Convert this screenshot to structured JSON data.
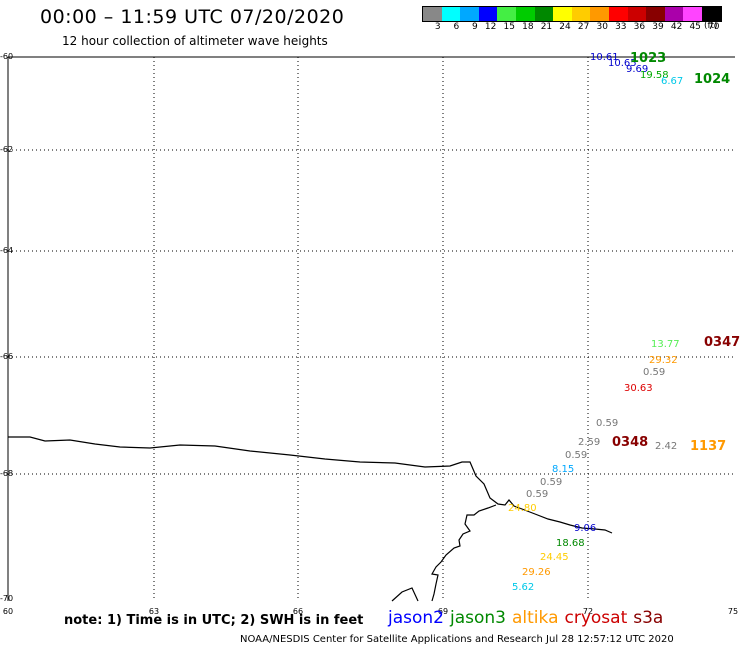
{
  "header": {
    "title": "00:00 – 11:59 UTC 07/20/2020",
    "subtitle": "12 hour collection of altimeter wave heights"
  },
  "scale": {
    "unit": "(ft)",
    "bins": [
      {
        "label": "3",
        "color": "#888888"
      },
      {
        "label": "6",
        "color": "#00ffff"
      },
      {
        "label": "9",
        "color": "#00a8ff"
      },
      {
        "label": "12",
        "color": "#0000ff"
      },
      {
        "label": "15",
        "color": "#44ee44"
      },
      {
        "label": "18",
        "color": "#00cc00"
      },
      {
        "label": "21",
        "color": "#008800"
      },
      {
        "label": "24",
        "color": "#ffff00"
      },
      {
        "label": "27",
        "color": "#ffcc00"
      },
      {
        "label": "30",
        "color": "#ff9900"
      },
      {
        "label": "33",
        "color": "#ff0000"
      },
      {
        "label": "36",
        "color": "#cc0000"
      },
      {
        "label": "39",
        "color": "#880000"
      },
      {
        "label": "42",
        "color": "#aa00aa"
      },
      {
        "label": "45",
        "color": "#ff44ff"
      },
      {
        "label": "70",
        "color": "#000000"
      }
    ]
  },
  "axes": {
    "lat_labels": [
      "-60",
      "-62",
      "-64",
      "-66",
      "-68",
      "-70"
    ],
    "lon_labels": [
      "60",
      "63",
      "66",
      "69",
      "72",
      "75"
    ]
  },
  "observations": [
    {
      "text": "10.61",
      "color": "#0000cc"
    },
    {
      "text": "10.65",
      "color": "#0000cc"
    },
    {
      "text": "9.69",
      "color": "#0000cc"
    },
    {
      "text": "19.58",
      "color": "#00aa00"
    },
    {
      "text": "6.67",
      "color": "#00c8e8"
    },
    {
      "text": "13.77",
      "color": "#55ee55"
    },
    {
      "text": "29.32",
      "color": "#ff9900"
    },
    {
      "text": "0.59",
      "color": "#777777"
    },
    {
      "text": "30.63",
      "color": "#dd0000"
    },
    {
      "text": "0.59",
      "color": "#777777"
    },
    {
      "text": "2.59",
      "color": "#777777"
    },
    {
      "text": "0.59",
      "color": "#777777"
    },
    {
      "text": "8.15",
      "color": "#00a8ff"
    },
    {
      "text": "0.59",
      "color": "#777777"
    },
    {
      "text": "0.59",
      "color": "#777777"
    },
    {
      "text": "24.80",
      "color": "#ffcc00"
    },
    {
      "text": "9.06",
      "color": "#0000cc"
    },
    {
      "text": "18.68",
      "color": "#008800"
    },
    {
      "text": "24.45",
      "color": "#ffcc00"
    },
    {
      "text": "29.26",
      "color": "#ff9900"
    },
    {
      "text": "5.62",
      "color": "#00c8e8"
    },
    {
      "text": "2.42",
      "color": "#777777"
    }
  ],
  "pass_times": [
    {
      "text": "1023",
      "color": "#008800"
    },
    {
      "text": "1024",
      "color": "#008800"
    },
    {
      "text": "0347",
      "color": "#880000"
    },
    {
      "text": "0348",
      "color": "#880000"
    },
    {
      "text": "1137",
      "color": "#ff9900"
    }
  ],
  "footer": {
    "note": "note: 1) Time is in UTC; 2) SWH is in feet",
    "satellites": [
      {
        "name": "jason2",
        "color": "#0000ff"
      },
      {
        "name": "jason3",
        "color": "#008800"
      },
      {
        "name": "altika",
        "color": "#ff9900"
      },
      {
        "name": "cryosat",
        "color": "#cc0000"
      },
      {
        "name": "s3a",
        "color": "#880000"
      }
    ],
    "credit": "NOAA/NESDIS Center for Satellite Applications and Research     Jul 28 12:57:12 UTC 2020"
  }
}
